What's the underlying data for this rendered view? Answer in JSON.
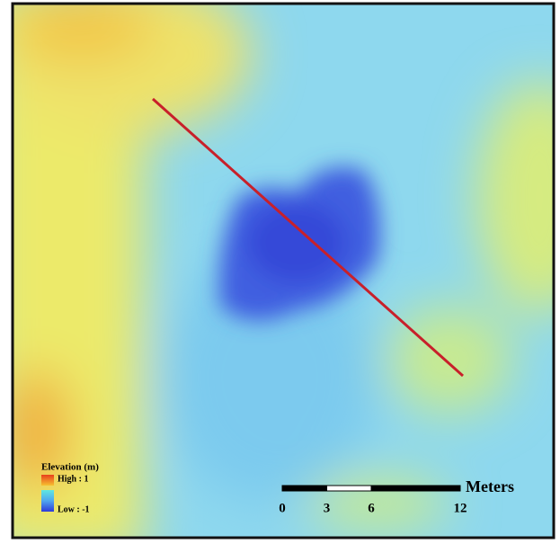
{
  "legend": {
    "title": "Elevation (m)",
    "high": "High : 1",
    "low": "Low : -1"
  },
  "scale_bar": {
    "unit": "Meters",
    "ticks": [
      0,
      3,
      6,
      12
    ]
  }
}
